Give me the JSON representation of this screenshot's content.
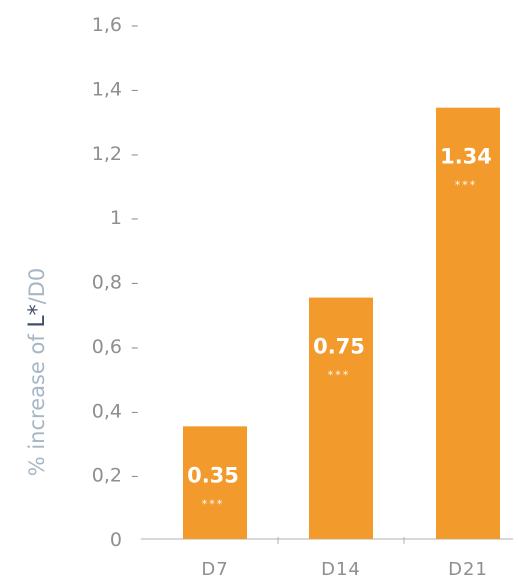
{
  "chart_data": {
    "type": "bar",
    "categories": [
      "D7",
      "D14",
      "D21"
    ],
    "values": [
      0.35,
      0.75,
      1.34
    ],
    "value_labels": [
      "0.35",
      "0.75",
      "1.34"
    ],
    "significance": [
      "***",
      "***",
      "***"
    ],
    "ylabel": {
      "prefix": "% increase of ",
      "emphasis": "L*",
      "suffix": "/D0"
    },
    "ylim": [
      0,
      1.6
    ],
    "yticks": [
      0,
      0.2,
      0.4,
      0.6,
      0.8,
      1,
      1.2,
      1.4,
      1.6
    ],
    "ytick_labels": [
      "0",
      "0,2",
      "0,4",
      "0,6",
      "0,8",
      "1",
      "1,2",
      "1,4",
      "1,6"
    ],
    "grid": false,
    "colors": {
      "bar": "#f39a2c",
      "axis": "#b0b0b0",
      "tick_text": "#8f8f8f",
      "ylabel_text": "#a6b6c4",
      "ylabel_emphasis": "#3f4d6b"
    }
  }
}
